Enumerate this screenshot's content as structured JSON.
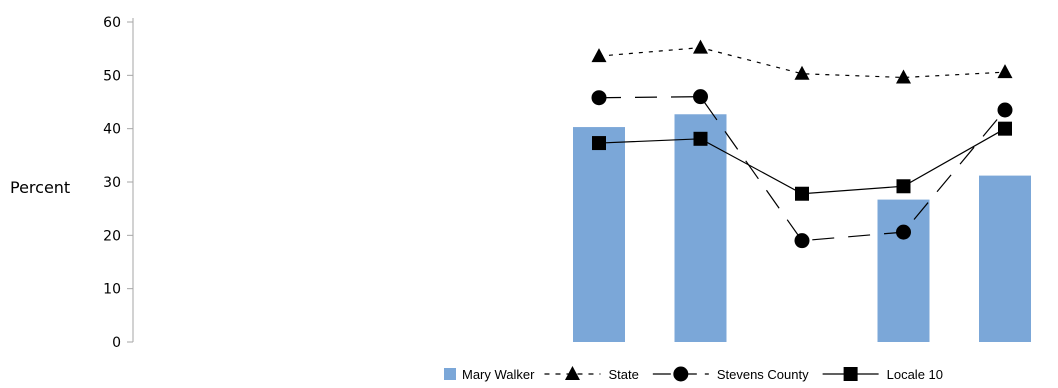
{
  "chart_data": {
    "type": "bar",
    "ylabel": "Percent",
    "ylim": [
      0,
      60
    ],
    "yticks": [
      0,
      10,
      20,
      30,
      40,
      50,
      60
    ],
    "categories": [
      "",
      "",
      "",
      "",
      "",
      "",
      "",
      "",
      "",
      ""
    ],
    "bar_series": {
      "name": "Mary Walker",
      "color": "#7ba7d8",
      "values": [
        null,
        null,
        null,
        null,
        null,
        40.3,
        42.7,
        null,
        26.7,
        31.2
      ]
    },
    "line_series": [
      {
        "name": "State",
        "marker": "triangle",
        "dash": "dotted",
        "values": [
          null,
          null,
          null,
          null,
          null,
          53.6,
          55.2,
          50.3,
          49.6,
          50.6
        ]
      },
      {
        "name": "Stevens County",
        "marker": "circle",
        "dash": "dashed",
        "values": [
          null,
          null,
          null,
          null,
          null,
          45.8,
          46.0,
          19.0,
          20.6,
          43.5
        ]
      },
      {
        "name": "Locale 10",
        "marker": "square",
        "dash": "solid",
        "values": [
          null,
          null,
          null,
          null,
          null,
          37.3,
          38.1,
          27.8,
          29.2,
          40.0
        ]
      }
    ],
    "legend_position": "bottom-right",
    "grid": false
  }
}
